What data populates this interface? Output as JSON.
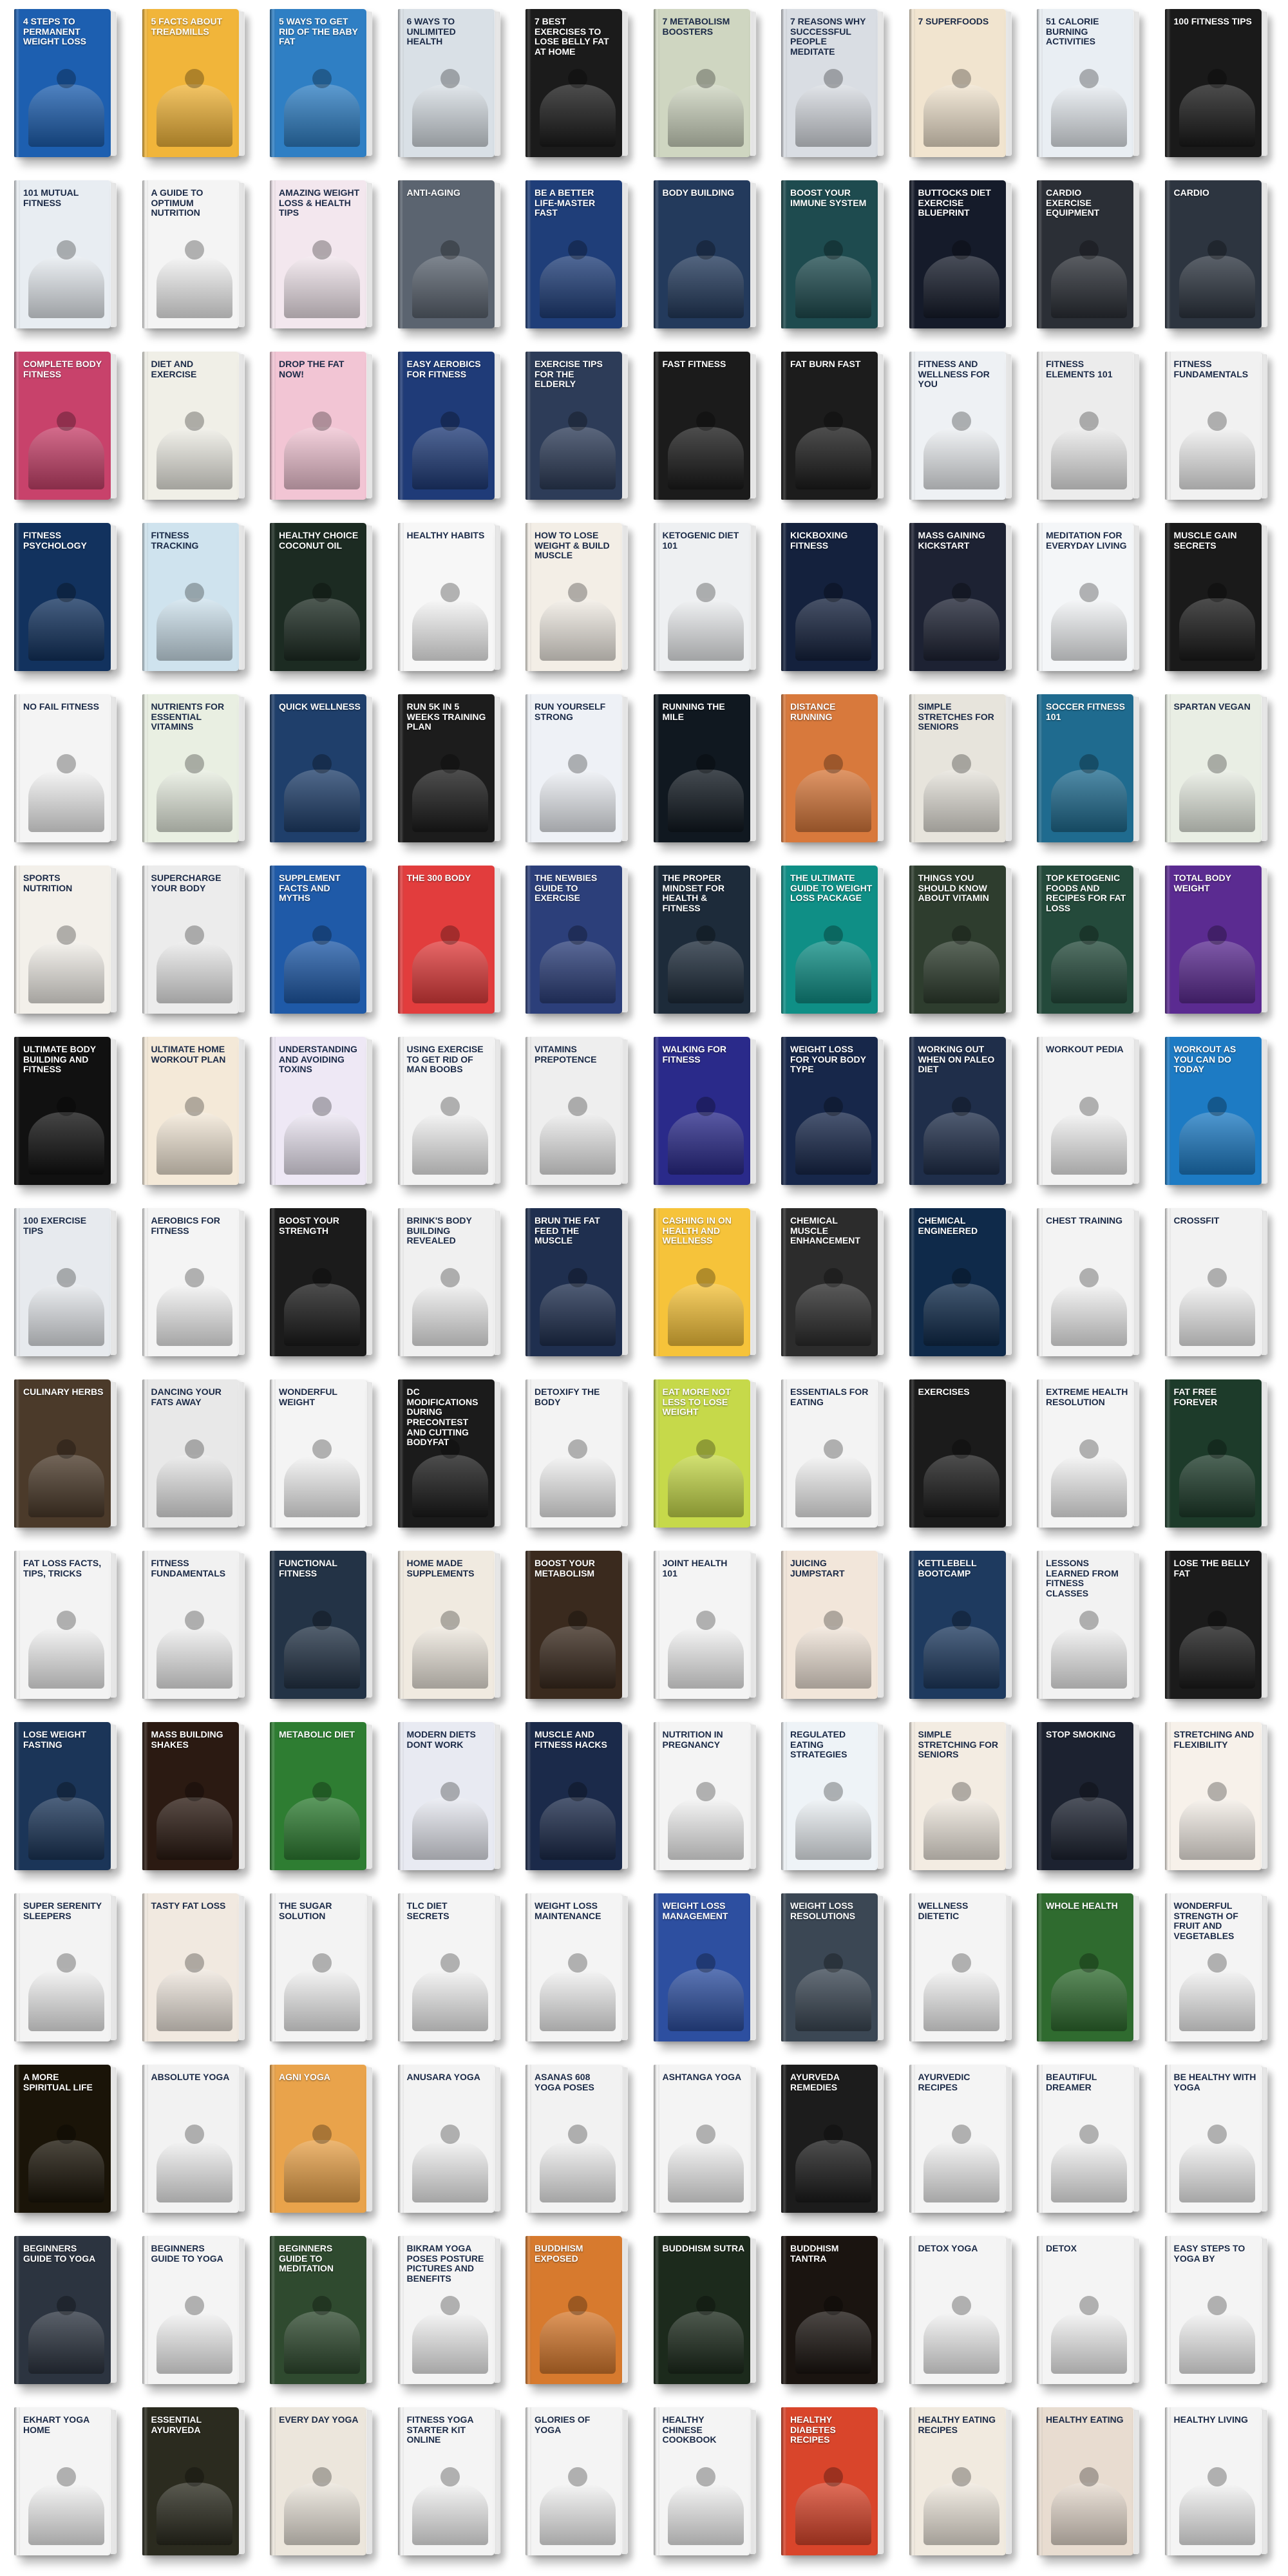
{
  "books": [
    {
      "title": "4 Steps To Permanent Weight Loss",
      "color": "#1d5fb0",
      "theme": "dark"
    },
    {
      "title": "5 Facts About Treadmills",
      "color": "#f1b53a",
      "theme": "dark"
    },
    {
      "title": "5 Ways To Get Rid Of The Baby Fat",
      "color": "#2f7fc4",
      "theme": "dark"
    },
    {
      "title": "6 Ways To Unlimited Health",
      "color": "#d9e0e6",
      "theme": "light"
    },
    {
      "title": "7 Best Exercises To Lose Belly Fat At Home",
      "color": "#1b1b1b",
      "theme": "dark"
    },
    {
      "title": "7 Metabolism Boosters",
      "color": "#cfd6c1",
      "theme": "light"
    },
    {
      "title": "7 Reasons Why Successful People Meditate",
      "color": "#d9dde3",
      "theme": "light"
    },
    {
      "title": "7 Superfoods",
      "color": "#f1e4cf",
      "theme": "light"
    },
    {
      "title": "51 Calorie Burning Activities",
      "color": "#e9eef3",
      "theme": "light"
    },
    {
      "title": "100 Fitness Tips",
      "color": "#1a1a1a",
      "theme": "dark"
    },
    {
      "title": "101 Mutual Fitness",
      "color": "#e8edf2",
      "theme": "light"
    },
    {
      "title": "A Guide To Optimum Nutrition",
      "color": "#f4f4f4",
      "theme": "light"
    },
    {
      "title": "Amazing Weight Loss & Health Tips",
      "color": "#f3e7ee",
      "theme": "light"
    },
    {
      "title": "Anti-Aging",
      "color": "#5b6470",
      "theme": "dark"
    },
    {
      "title": "Be A Better Life-Master Fast",
      "color": "#1f3e79",
      "theme": "dark"
    },
    {
      "title": "Body Building",
      "color": "#233a5c",
      "theme": "dark"
    },
    {
      "title": "Boost Your Immune System",
      "color": "#1e4b4f",
      "theme": "dark"
    },
    {
      "title": "Buttocks Diet Exercise Blueprint",
      "color": "#151b2a",
      "theme": "dark"
    },
    {
      "title": "Cardio Exercise Equipment",
      "color": "#2b2f36",
      "theme": "dark"
    },
    {
      "title": "Cardio",
      "color": "#2d3540",
      "theme": "dark"
    },
    {
      "title": "Complete Body Fitness",
      "color": "#c8426b",
      "theme": "dark"
    },
    {
      "title": "Diet And Exercise",
      "color": "#f0efe7",
      "theme": "light"
    },
    {
      "title": "Drop The Fat Now!",
      "color": "#f2c5d4",
      "theme": "light"
    },
    {
      "title": "Easy Aerobics For Fitness",
      "color": "#1f3b78",
      "theme": "dark"
    },
    {
      "title": "Exercise Tips For The Elderly",
      "color": "#2d3c58",
      "theme": "dark"
    },
    {
      "title": "Fast Fitness",
      "color": "#1b1b1b",
      "theme": "dark"
    },
    {
      "title": "Fat Burn Fast",
      "color": "#1c1c1c",
      "theme": "dark"
    },
    {
      "title": "Fitness And Wellness For You",
      "color": "#eef1f4",
      "theme": "light"
    },
    {
      "title": "Fitness Elements 101",
      "color": "#ececec",
      "theme": "light"
    },
    {
      "title": "Fitness Fundamentals",
      "color": "#f1f1f1",
      "theme": "light"
    },
    {
      "title": "Fitness Psychology",
      "color": "#12325e",
      "theme": "dark"
    },
    {
      "title": "Fitness Tracking",
      "color": "#cfe3ee",
      "theme": "light"
    },
    {
      "title": "Healthy Choice Coconut Oil",
      "color": "#1c2b22",
      "theme": "dark"
    },
    {
      "title": "Healthy Habits",
      "color": "#f7f7f7",
      "theme": "light"
    },
    {
      "title": "How To Lose Weight & Build Muscle",
      "color": "#f3eee6",
      "theme": "light"
    },
    {
      "title": "Ketogenic Diet 101",
      "color": "#eef0f2",
      "theme": "light"
    },
    {
      "title": "Kickboxing Fitness",
      "color": "#14213d",
      "theme": "dark"
    },
    {
      "title": "Mass Gaining Kickstart",
      "color": "#1d2233",
      "theme": "dark"
    },
    {
      "title": "Meditation For Everyday Living",
      "color": "#f4f6f8",
      "theme": "light"
    },
    {
      "title": "Muscle Gain Secrets",
      "color": "#1a1a1a",
      "theme": "dark"
    },
    {
      "title": "No Fail Fitness",
      "color": "#f4f4f4",
      "theme": "light"
    },
    {
      "title": "Nutrients For Essential Vitamins",
      "color": "#e9efe2",
      "theme": "light"
    },
    {
      "title": "Quick Wellness",
      "color": "#1f3f6b",
      "theme": "dark"
    },
    {
      "title": "Run 5K In 5 Weeks Training Plan",
      "color": "#1c1c1c",
      "theme": "dark"
    },
    {
      "title": "Run Yourself Strong",
      "color": "#eef1f6",
      "theme": "light"
    },
    {
      "title": "Running The Mile",
      "color": "#101820",
      "theme": "dark"
    },
    {
      "title": "Distance Running",
      "color": "#d8793c",
      "theme": "dark"
    },
    {
      "title": "Simple Stretches For Seniors",
      "color": "#e7e4dc",
      "theme": "light"
    },
    {
      "title": "Soccer Fitness 101",
      "color": "#1f6b8f",
      "theme": "dark"
    },
    {
      "title": "Spartan Vegan",
      "color": "#e9eee4",
      "theme": "light"
    },
    {
      "title": "Sports Nutrition",
      "color": "#f3f0ea",
      "theme": "light"
    },
    {
      "title": "Supercharge Your Body",
      "color": "#ececec",
      "theme": "light"
    },
    {
      "title": "Supplement Facts And Myths",
      "color": "#1f5aa8",
      "theme": "dark"
    },
    {
      "title": "The 300 Body",
      "color": "#e23d3d",
      "theme": "dark"
    },
    {
      "title": "The Newbies Guide To Exercise",
      "color": "#2c3f7a",
      "theme": "dark"
    },
    {
      "title": "The Proper Mindset For Health & Fitness",
      "color": "#1d2b3a",
      "theme": "dark"
    },
    {
      "title": "The Ultimate Guide To Weight Loss Package",
      "color": "#0f8f86",
      "theme": "dark"
    },
    {
      "title": "Things You Should Know About Vitamin",
      "color": "#2e3d2e",
      "theme": "dark"
    },
    {
      "title": "Top Ketogenic Foods And Recipes For Fat Loss",
      "color": "#244a3b",
      "theme": "dark"
    },
    {
      "title": "Total Body Weight",
      "color": "#5b2b91",
      "theme": "dark"
    },
    {
      "title": "Ultimate Body Building and Fitness",
      "color": "#111111",
      "theme": "dark"
    },
    {
      "title": "Ultimate Home Workout Plan",
      "color": "#f4e9d8",
      "theme": "light"
    },
    {
      "title": "Understanding And Avoiding Toxins",
      "color": "#eee8f5",
      "theme": "light"
    },
    {
      "title": "Using Exercise To Get Rid Of Man Boobs",
      "color": "#f3f3f3",
      "theme": "light"
    },
    {
      "title": "Vitamins Prepotence",
      "color": "#eeeeee",
      "theme": "light"
    },
    {
      "title": "Walking For Fitness",
      "color": "#2a2a8a",
      "theme": "dark"
    },
    {
      "title": "Weight Loss For Your Body Type",
      "color": "#17274a",
      "theme": "dark"
    },
    {
      "title": "Working Out When On Paleo Diet",
      "color": "#1f2e4a",
      "theme": "dark"
    },
    {
      "title": "Workout Pedia",
      "color": "#f3f3f3",
      "theme": "light"
    },
    {
      "title": "Workout As You Can Do Today",
      "color": "#1d7bc4",
      "theme": "dark"
    },
    {
      "title": "100 Exercise Tips",
      "color": "#e7eaee",
      "theme": "light"
    },
    {
      "title": "Aerobics For Fitness",
      "color": "#f4f4f4",
      "theme": "light"
    },
    {
      "title": "Boost Your Strength",
      "color": "#1b1b1b",
      "theme": "dark"
    },
    {
      "title": "Brink's Body Building Revealed",
      "color": "#f0f0f0",
      "theme": "light"
    },
    {
      "title": "Brun the Fat Feed the Muscle",
      "color": "#1f2f4f",
      "theme": "dark"
    },
    {
      "title": "Cashing In On Health And Wellness",
      "color": "#f6c33a",
      "theme": "dark"
    },
    {
      "title": "Chemical Muscle Enhancement",
      "color": "#2c2c2c",
      "theme": "dark"
    },
    {
      "title": "Chemical Engineered",
      "color": "#0f2a4a",
      "theme": "dark"
    },
    {
      "title": "Chest Training",
      "color": "#f3f3f3",
      "theme": "light"
    },
    {
      "title": "Crossfit",
      "color": "#f2f2f2",
      "theme": "light"
    },
    {
      "title": "Culinary Herbs",
      "color": "#4b3a2a",
      "theme": "dark"
    },
    {
      "title": "Dancing Your Fats Away",
      "color": "#e8e8e8",
      "theme": "light"
    },
    {
      "title": "Wonderful Weight",
      "color": "#f4f4f4",
      "theme": "light"
    },
    {
      "title": "DC Modifications During Precontest And Cutting Bodyfat",
      "color": "#1b1b1b",
      "theme": "dark"
    },
    {
      "title": "Detoxify The Body",
      "color": "#f3f3f3",
      "theme": "light"
    },
    {
      "title": "Eat More Not Less To Lose Weight",
      "color": "#c6d94a",
      "theme": "dark"
    },
    {
      "title": "Essentials For Eating",
      "color": "#f3f3f3",
      "theme": "light"
    },
    {
      "title": "Exercises",
      "color": "#1b1b1b",
      "theme": "dark"
    },
    {
      "title": "Extreme Health Resolution",
      "color": "#f4f4f4",
      "theme": "light"
    },
    {
      "title": "Fat Free Forever",
      "color": "#1d3b2a",
      "theme": "dark"
    },
    {
      "title": "Fat Loss Facts, Tips, Tricks",
      "color": "#f3f3f3",
      "theme": "light"
    },
    {
      "title": "Fitness Fundamentals",
      "color": "#f1f1f1",
      "theme": "light"
    },
    {
      "title": "Functional Fitness",
      "color": "#233346",
      "theme": "dark"
    },
    {
      "title": "Home Made Supplements",
      "color": "#f0eae0",
      "theme": "light"
    },
    {
      "title": "Boost Your Metabolism",
      "color": "#3a2a1e",
      "theme": "dark"
    },
    {
      "title": "Joint Health 101",
      "color": "#f4f4f4",
      "theme": "light"
    },
    {
      "title": "Juicing Jumpstart",
      "color": "#f2e6da",
      "theme": "light"
    },
    {
      "title": "Kettlebell Bootcamp",
      "color": "#1e3a5f",
      "theme": "dark"
    },
    {
      "title": "Lessons Learned From Fitness Classes",
      "color": "#f2f2f2",
      "theme": "light"
    },
    {
      "title": "Lose The Belly Fat",
      "color": "#1b1b1b",
      "theme": "dark"
    },
    {
      "title": "Lose Weight Fasting",
      "color": "#1b3558",
      "theme": "dark"
    },
    {
      "title": "Mass Building Shakes",
      "color": "#2b1a12",
      "theme": "dark"
    },
    {
      "title": "Metabolic Diet",
      "color": "#2e7d32",
      "theme": "dark"
    },
    {
      "title": "Modern Diets Dont Work",
      "color": "#e8eaf2",
      "theme": "light"
    },
    {
      "title": "Muscle And Fitness Hacks",
      "color": "#1b2a4a",
      "theme": "dark"
    },
    {
      "title": "Nutrition In Pregnancy",
      "color": "#f4f4f4",
      "theme": "light"
    },
    {
      "title": "Regulated Eating Strategies",
      "color": "#eef3f7",
      "theme": "light"
    },
    {
      "title": "Simple Stretching For Seniors",
      "color": "#f3ece2",
      "theme": "light"
    },
    {
      "title": "Stop Smoking",
      "color": "#1c2230",
      "theme": "dark"
    },
    {
      "title": "Stretching And Flexibility",
      "color": "#f7f1ea",
      "theme": "light"
    },
    {
      "title": "Super Serenity Sleepers",
      "color": "#f3f3f3",
      "theme": "light"
    },
    {
      "title": "Tasty Fat Loss",
      "color": "#f1e9e0",
      "theme": "light"
    },
    {
      "title": "The Sugar Solution",
      "color": "#f3f3f3",
      "theme": "light"
    },
    {
      "title": "TLC Diet Secrets",
      "color": "#f4f4f4",
      "theme": "light"
    },
    {
      "title": "Weight Loss Maintenance",
      "color": "#f4f4f4",
      "theme": "light"
    },
    {
      "title": "Weight Loss Management",
      "color": "#2d4fa0",
      "theme": "dark"
    },
    {
      "title": "Weight Loss Resolutions",
      "color": "#3b4754",
      "theme": "dark"
    },
    {
      "title": "Wellness Dietetic",
      "color": "#f4f4f4",
      "theme": "light"
    },
    {
      "title": "Whole Health",
      "color": "#2f6b2f",
      "theme": "dark"
    },
    {
      "title": "Wonderful Strength Of Fruit And Vegetables",
      "color": "#f4f4f4",
      "theme": "light"
    },
    {
      "title": "A More Spiritual Life",
      "color": "#1a1408",
      "theme": "dark"
    },
    {
      "title": "Absolute Yoga",
      "color": "#f2f2f2",
      "theme": "light"
    },
    {
      "title": "Agni Yoga",
      "color": "#e9a34b",
      "theme": "dark"
    },
    {
      "title": "Anusara Yoga",
      "color": "#f3f3f3",
      "theme": "light"
    },
    {
      "title": "Asanas 608 Yoga Poses",
      "color": "#f2f2f2",
      "theme": "light"
    },
    {
      "title": "Ashtanga Yoga",
      "color": "#f4f4f4",
      "theme": "light"
    },
    {
      "title": "Ayurveda Remedies",
      "color": "#1c1c1c",
      "theme": "dark"
    },
    {
      "title": "Ayurvedic Recipes",
      "color": "#f4f4f4",
      "theme": "light"
    },
    {
      "title": "Beautiful Dreamer",
      "color": "#f4f4f4",
      "theme": "light"
    },
    {
      "title": "Be Healthy With Yoga",
      "color": "#f4f4f4",
      "theme": "light"
    },
    {
      "title": "Beginners Guide To Yoga",
      "color": "#2c3440",
      "theme": "dark"
    },
    {
      "title": "Beginners Guide To Yoga",
      "color": "#f4f4f4",
      "theme": "light"
    },
    {
      "title": "Beginners Guide To Meditation",
      "color": "#2f4a2f",
      "theme": "dark"
    },
    {
      "title": "Bikram Yoga Poses Posture Pictures And Benefits",
      "color": "#f4f4f4",
      "theme": "light"
    },
    {
      "title": "Buddhism Exposed",
      "color": "#d77a2e",
      "theme": "dark"
    },
    {
      "title": "Buddhism Sutra",
      "color": "#1c2a1c",
      "theme": "dark"
    },
    {
      "title": "Buddhism Tantra",
      "color": "#1a1410",
      "theme": "dark"
    },
    {
      "title": "Detox Yoga",
      "color": "#f4f4f4",
      "theme": "light"
    },
    {
      "title": "Detox",
      "color": "#f4f4f4",
      "theme": "light"
    },
    {
      "title": "Easy Steps To Yoga By",
      "color": "#f4f4f4",
      "theme": "light"
    },
    {
      "title": "Ekhart Yoga Home",
      "color": "#f4f4f4",
      "theme": "light"
    },
    {
      "title": "Essential Ayurveda",
      "color": "#2b2b1f",
      "theme": "dark"
    },
    {
      "title": "Every Day Yoga",
      "color": "#ece6dc",
      "theme": "light"
    },
    {
      "title": "Fitness Yoga Starter Kit Online",
      "color": "#f4f4f4",
      "theme": "light"
    },
    {
      "title": "Glories Of Yoga",
      "color": "#f4f4f4",
      "theme": "light"
    },
    {
      "title": "Healthy Chinese Cookbook",
      "color": "#f4f4f4",
      "theme": "light"
    },
    {
      "title": "Healthy Diabetes Recipes",
      "color": "#d9452b",
      "theme": "dark"
    },
    {
      "title": "Healthy Eating Recipes",
      "color": "#f1eadf",
      "theme": "light"
    },
    {
      "title": "Healthy Eating",
      "color": "#e8dcd0",
      "theme": "light"
    },
    {
      "title": "Healthy Living",
      "color": "#f4f4f4",
      "theme": "light"
    }
  ]
}
